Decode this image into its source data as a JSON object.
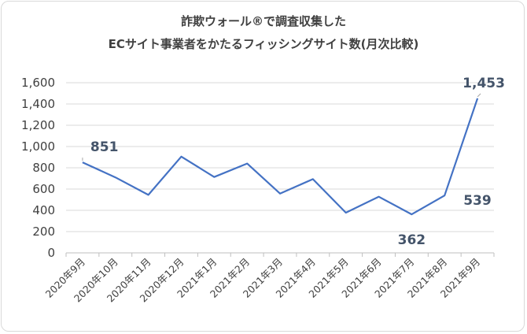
{
  "chart_data": {
    "type": "line",
    "title_lines": [
      "詐欺ウォール®で調査収集した",
      "ECサイト事業者をかたるフィッシングサイト数(月次比較)"
    ],
    "categories": [
      "2020年9月",
      "2020年10月",
      "2020年11月",
      "2020年12月",
      "2021年1月",
      "2021年2月",
      "2021年3月",
      "2021年4月",
      "2021年5月",
      "2021年6月",
      "2021年7月",
      "2021年8月",
      "2021年9月"
    ],
    "series": [
      {
        "values": [
          851,
          710,
          545,
          905,
          713,
          840,
          558,
          693,
          378,
          528,
          362,
          539,
          1453
        ]
      }
    ],
    "y_ticks": [
      "0",
      "200",
      "400",
      "600",
      "800",
      "1,000",
      "1,200",
      "1,400",
      "1,600"
    ],
    "ylim": [
      0,
      1600
    ],
    "grid": "horizontal",
    "legend": "none",
    "line_color": "#4472c4",
    "data_labels": [
      {
        "index": 0,
        "text": "851"
      },
      {
        "index": 10,
        "text": "362"
      },
      {
        "index": 11,
        "text": "539"
      },
      {
        "index": 12,
        "text": "1,453"
      }
    ]
  }
}
